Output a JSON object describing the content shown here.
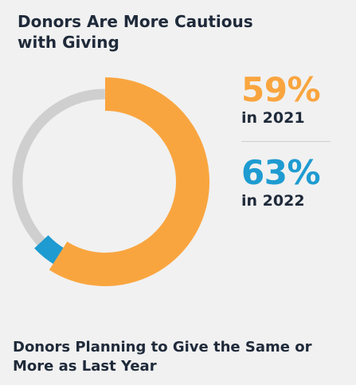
{
  "title": "Donors Are More Cautious with Giving",
  "caption": "Donors Planning to Give the Same or More as Last Year",
  "colors": {
    "year_2021": "#f9a53f",
    "year_2022": "#1e9bd1",
    "track": "#cfcfcf"
  },
  "chart_data": {
    "type": "pie",
    "style": "donut",
    "series": [
      {
        "name": "in 2021",
        "value": 59,
        "label": "59%",
        "color": "#f9a53f"
      },
      {
        "name": "in 2022",
        "value": 63,
        "label": "63%",
        "color": "#1e9bd1"
      }
    ],
    "total": 100
  }
}
